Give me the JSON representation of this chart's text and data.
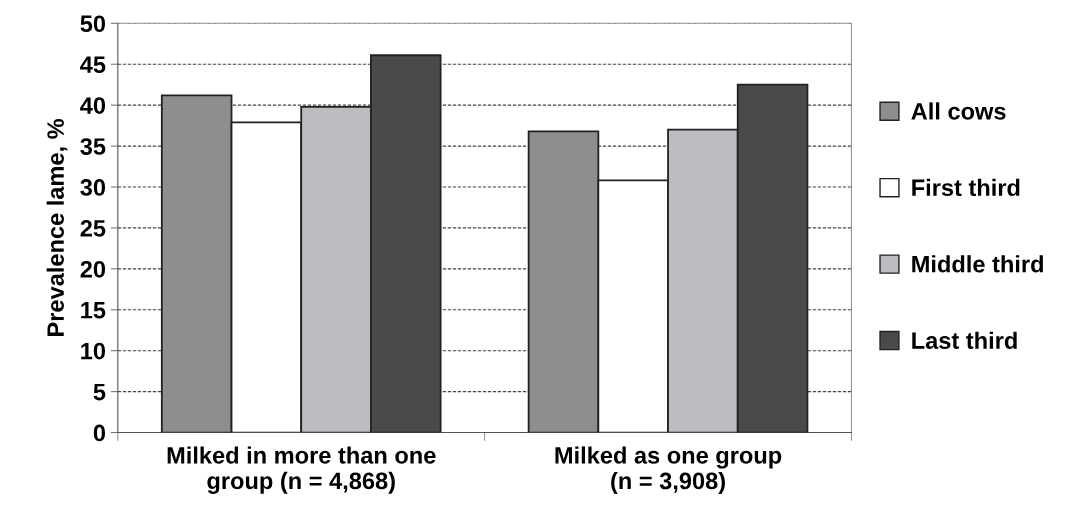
{
  "chart_data": {
    "type": "bar",
    "ylabel": "Prevalence lame, %",
    "categories": [
      "Milked in more than one\ngroup (n = 4,868)",
      "Milked as one group\n(n = 3,908)"
    ],
    "series": [
      {
        "name": "All cows",
        "color": "#8e8e8e",
        "values": [
          41.2,
          36.8
        ]
      },
      {
        "name": "First third",
        "color": "#ffffff",
        "values": [
          37.9,
          30.8
        ]
      },
      {
        "name": "Middle third",
        "color": "#bcbdc0",
        "values": [
          39.8,
          37.0
        ]
      },
      {
        "name": "Last third",
        "color": "#4a4a4c",
        "values": [
          46.1,
          42.5
        ]
      }
    ],
    "ylim": [
      0,
      50
    ],
    "yticks": [
      0,
      5,
      10,
      15,
      20,
      25,
      30,
      35,
      40,
      45,
      50
    ],
    "grid": "y",
    "legend": "right"
  }
}
